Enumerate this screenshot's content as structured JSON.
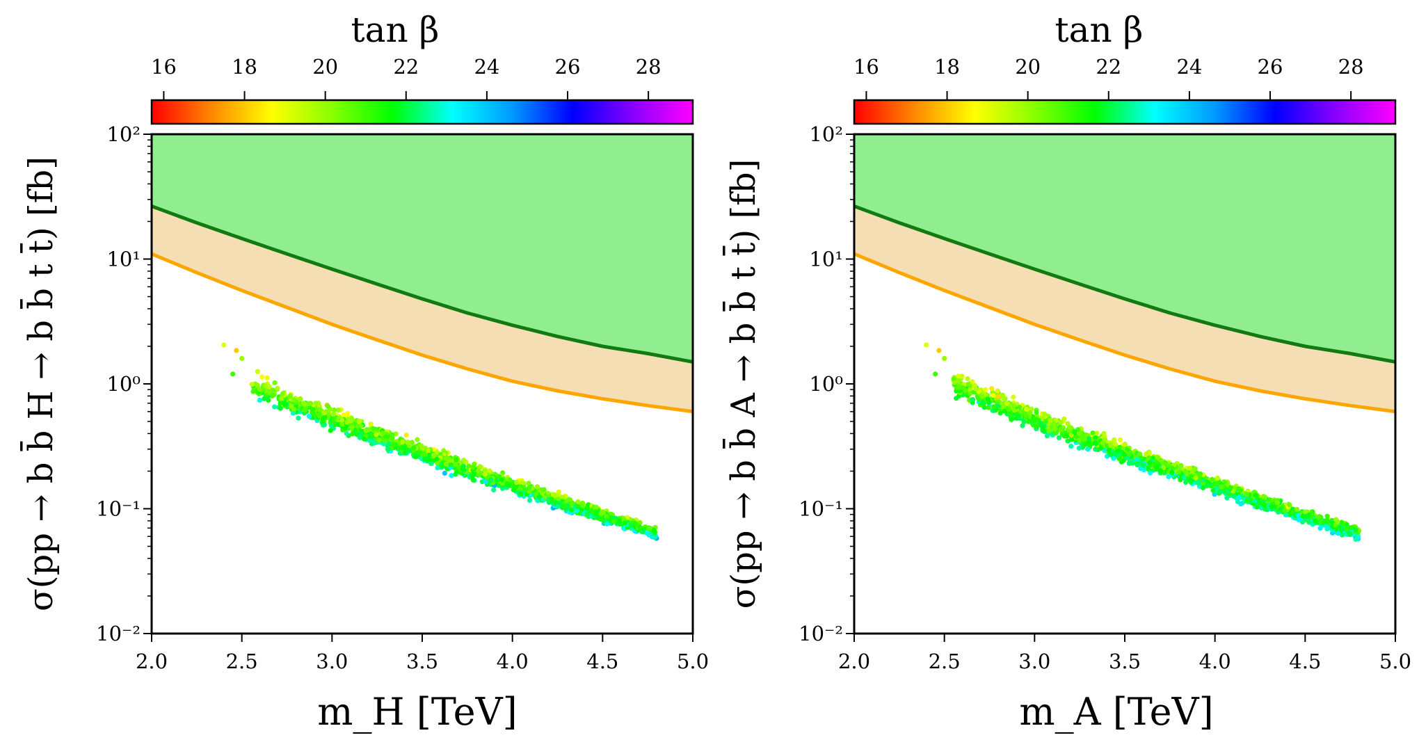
{
  "chart_data": [
    {
      "type": "scatter",
      "xlabel": "m_H [TeV]",
      "ylabel": "σ(pp → b b̄ H → b b̄ t t̄) [fb]",
      "xlim": [
        2.0,
        5.0
      ],
      "ylim": [
        0.01,
        100
      ],
      "yscale": "log",
      "x_ticks": [
        "2.0",
        "2.5",
        "3.0",
        "3.5",
        "4.0",
        "4.5",
        "5.0"
      ],
      "y_ticks": [
        "10⁻²",
        "10⁻¹",
        "10⁰",
        "10¹",
        "10²"
      ],
      "colorbar": {
        "title": "tan β",
        "range": [
          15.7,
          29.1
        ],
        "ticks": [
          "16",
          "18",
          "20",
          "22",
          "24",
          "26",
          "28"
        ],
        "colormap": [
          "#ff0000",
          "#ff8800",
          "#ffff00",
          "#88ff00",
          "#00ff00",
          "#00ffff",
          "#0099ff",
          "#0000ff",
          "#8800ff",
          "#ff00ff"
        ]
      },
      "series": [
        {
          "name": "upper limit (green curve)",
          "color": "#117a11",
          "fill": "#90ee90",
          "x": [
            2.0,
            2.25,
            2.5,
            2.75,
            3.0,
            3.25,
            3.5,
            3.75,
            4.0,
            4.25,
            4.5,
            4.75,
            5.0
          ],
          "y": [
            26.5,
            19.5,
            14.6,
            11.0,
            8.3,
            6.3,
            4.8,
            3.7,
            2.95,
            2.4,
            2.0,
            1.75,
            1.5
          ]
        },
        {
          "name": "expected limit (orange curve)",
          "color": "#ffa500",
          "fill": "#f5deb3",
          "x": [
            2.0,
            2.25,
            2.5,
            2.75,
            3.0,
            3.25,
            3.5,
            3.75,
            4.0,
            4.25,
            4.5,
            4.75,
            5.0
          ],
          "y": [
            11.0,
            7.8,
            5.6,
            4.1,
            3.0,
            2.25,
            1.7,
            1.32,
            1.05,
            0.88,
            0.76,
            0.67,
            0.6
          ]
        }
      ],
      "scatter_band": {
        "x_range": [
          2.4,
          4.8
        ],
        "y_at_x_min": 1.35,
        "y_at_x_max": 0.063,
        "tan_beta_range": [
          16,
          27
        ]
      }
    },
    {
      "type": "scatter",
      "xlabel": "m_A [TeV]",
      "ylabel": "σ(pp → b b̄ A → b b̄ t t̄) [fb]",
      "xlim": [
        2.0,
        5.0
      ],
      "ylim": [
        0.01,
        100
      ],
      "yscale": "log",
      "x_ticks": [
        "2.0",
        "2.5",
        "3.0",
        "3.5",
        "4.0",
        "4.5",
        "5.0"
      ],
      "y_ticks": [
        "10⁻²",
        "10⁻¹",
        "10⁰",
        "10¹",
        "10²"
      ],
      "colorbar": {
        "title": "tan β",
        "range": [
          15.7,
          29.1
        ],
        "ticks": [
          "16",
          "18",
          "20",
          "22",
          "24",
          "26",
          "28"
        ],
        "colormap": [
          "#ff0000",
          "#ff8800",
          "#ffff00",
          "#88ff00",
          "#00ff00",
          "#00ffff",
          "#0099ff",
          "#0000ff",
          "#8800ff",
          "#ff00ff"
        ]
      },
      "series": [
        {
          "name": "upper limit (green curve)",
          "color": "#117a11",
          "fill": "#90ee90",
          "x": [
            2.0,
            2.25,
            2.5,
            2.75,
            3.0,
            3.25,
            3.5,
            3.75,
            4.0,
            4.25,
            4.5,
            4.75,
            5.0
          ],
          "y": [
            26.5,
            19.5,
            14.6,
            11.0,
            8.3,
            6.3,
            4.8,
            3.7,
            2.95,
            2.4,
            2.0,
            1.75,
            1.5
          ]
        },
        {
          "name": "expected limit (orange curve)",
          "color": "#ffa500",
          "fill": "#f5deb3",
          "x": [
            2.0,
            2.25,
            2.5,
            2.75,
            3.0,
            3.25,
            3.5,
            3.75,
            4.0,
            4.25,
            4.5,
            4.75,
            5.0
          ],
          "y": [
            11.0,
            7.8,
            5.6,
            4.1,
            3.0,
            2.25,
            1.7,
            1.32,
            1.05,
            0.88,
            0.76,
            0.67,
            0.6
          ]
        }
      ],
      "scatter_band": {
        "x_range": [
          2.4,
          4.8
        ],
        "y_at_x_min": 1.35,
        "y_at_x_max": 0.063,
        "tan_beta_range": [
          16,
          27
        ]
      }
    }
  ]
}
